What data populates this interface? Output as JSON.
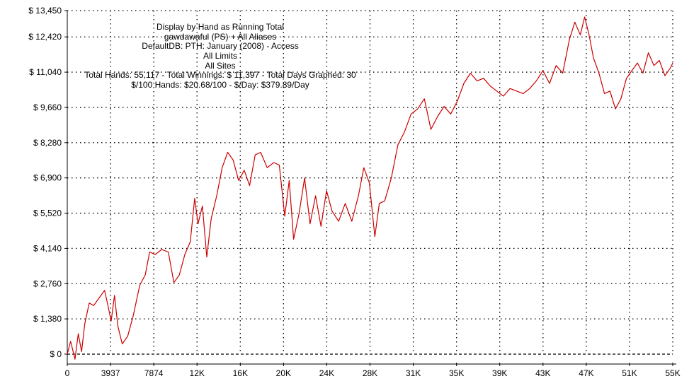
{
  "chart_data": {
    "type": "line",
    "title_lines": [
      "Display by Hand as Running Total",
      "gawdawaful (PS) + All Aliases",
      "DefaultDB: PTH: January (2008) - Access",
      "All Limits",
      "All Sites",
      "Total Hands: 55,117 - Total Winnings: $ 11,397 - Total Days Graphed: 30",
      "$/100 Hands: $20.68/100 - $/Day: $379.89/Day"
    ],
    "xlabel": "",
    "ylabel": "",
    "xlim": [
      0,
      55117
    ],
    "ylim": [
      -400,
      13450
    ],
    "x_ticks": [
      {
        "value": 0,
        "label": "0"
      },
      {
        "value": 3937,
        "label": "3937"
      },
      {
        "value": 7874,
        "label": "7874"
      },
      {
        "value": 11811,
        "label": "12K"
      },
      {
        "value": 15748,
        "label": "16K"
      },
      {
        "value": 19685,
        "label": "20K"
      },
      {
        "value": 23622,
        "label": "24K"
      },
      {
        "value": 27559,
        "label": "28K"
      },
      {
        "value": 31496,
        "label": "31K"
      },
      {
        "value": 35433,
        "label": "35K"
      },
      {
        "value": 39370,
        "label": "39K"
      },
      {
        "value": 43307,
        "label": "43K"
      },
      {
        "value": 47244,
        "label": "47K"
      },
      {
        "value": 51181,
        "label": "51K"
      },
      {
        "value": 55117,
        "label": "55K"
      }
    ],
    "y_ticks": [
      {
        "value": 0,
        "label": "$ 0"
      },
      {
        "value": 1380,
        "label": "$ 1,380"
      },
      {
        "value": 2760,
        "label": "$ 2,760"
      },
      {
        "value": 4140,
        "label": "$ 4,140"
      },
      {
        "value": 5520,
        "label": "$ 5,520"
      },
      {
        "value": 6900,
        "label": "$ 6,900"
      },
      {
        "value": 8280,
        "label": "$ 8,280"
      },
      {
        "value": 9660,
        "label": "$ 9,660"
      },
      {
        "value": 11040,
        "label": "$ 11,040"
      },
      {
        "value": 12420,
        "label": "$ 12,420"
      },
      {
        "value": 13450,
        "label": "$ 13,450"
      }
    ],
    "grid": true,
    "legend": "none",
    "colors": {
      "line": "#cc0000",
      "grid": "#000000"
    },
    "series": [
      {
        "x": [
          0,
          300,
          700,
          1000,
          1300,
          1600,
          2000,
          2400,
          2900,
          3400,
          3700,
          4000,
          4300,
          4600,
          5000,
          5500,
          6000,
          6600,
          7100,
          7500,
          8000,
          8600,
          9200,
          9700,
          10200,
          10700,
          11200,
          11600,
          11900,
          12300,
          12700,
          13100,
          13600,
          14100,
          14600,
          15100,
          15600,
          16100,
          16600,
          17100,
          17600,
          18200,
          18800,
          19300,
          19800,
          20200,
          20600,
          21100,
          21600,
          22100,
          22600,
          23100,
          23600,
          24100,
          24700,
          25300,
          25900,
          26500,
          27000,
          27500,
          28000,
          28400,
          28900,
          29500,
          30100,
          30700,
          31300,
          31900,
          32500,
          33100,
          33700,
          34300,
          34900,
          35500,
          36100,
          36700,
          37300,
          37900,
          38500,
          39100,
          39700,
          40300,
          40900,
          41500,
          42100,
          42700,
          43300,
          43900,
          44500,
          45100,
          45700,
          46200,
          46700,
          47100,
          47500,
          47900,
          48400,
          48900,
          49400,
          49900,
          50400,
          50900,
          51400,
          51900,
          52400,
          52900,
          53400,
          53900,
          54400,
          54900,
          55117
        ],
        "values": [
          0,
          500,
          -200,
          800,
          100,
          1200,
          2000,
          1900,
          2200,
          2500,
          1900,
          1300,
          2300,
          1100,
          400,
          700,
          1500,
          2700,
          3100,
          4000,
          3900,
          4100,
          4000,
          2800,
          3100,
          3900,
          4400,
          6100,
          5100,
          5800,
          3800,
          5300,
          6200,
          7300,
          7900,
          7600,
          6800,
          7200,
          6600,
          7800,
          7900,
          7300,
          7500,
          7400,
          5400,
          6800,
          4500,
          5500,
          6900,
          5100,
          6200,
          5000,
          6400,
          5600,
          5200,
          5900,
          5200,
          6200,
          7300,
          6700,
          4600,
          5900,
          6000,
          6900,
          8200,
          8700,
          9400,
          9600,
          10000,
          8800,
          9300,
          9700,
          9400,
          9900,
          10600,
          11000,
          10700,
          10800,
          10500,
          10300,
          10100,
          10400,
          10300,
          10200,
          10400,
          10700,
          11100,
          10600,
          11300,
          11000,
          12300,
          13000,
          12500,
          13200,
          12500,
          11600,
          11000,
          10200,
          10300,
          9600,
          10000,
          10800,
          11100,
          11400,
          11000,
          11800,
          11300,
          11500,
          10900,
          11200,
          11400
        ]
      }
    ]
  }
}
